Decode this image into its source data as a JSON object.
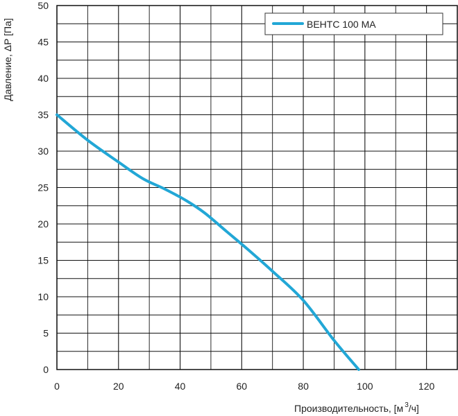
{
  "chart_data": {
    "type": "line",
    "xlabel": "Производительность, [м",
    "xlabel_sup": "3",
    "xlabel_tail": "/ч]",
    "ylabel": "Давление, ΔP [Па]",
    "xlim": [
      0,
      130
    ],
    "ylim": [
      0,
      50
    ],
    "xticks": [
      0,
      20,
      40,
      60,
      80,
      100,
      120
    ],
    "yticks": [
      0,
      5,
      10,
      15,
      20,
      25,
      30,
      35,
      40,
      45,
      50
    ],
    "x_grid_step": 10,
    "y_grid_step": 2.5,
    "grid": true,
    "legend_position": "top-right",
    "series": [
      {
        "name": "ВЕНТС 100 МА",
        "color": "#22a7d6",
        "x": [
          0,
          10,
          20,
          28,
          35,
          42,
          48,
          55,
          62,
          70,
          80,
          90,
          98
        ],
        "y": [
          35,
          31.5,
          28.5,
          26.2,
          24.8,
          23.2,
          21.5,
          19,
          16.5,
          13.5,
          9.5,
          4,
          0
        ]
      }
    ]
  }
}
